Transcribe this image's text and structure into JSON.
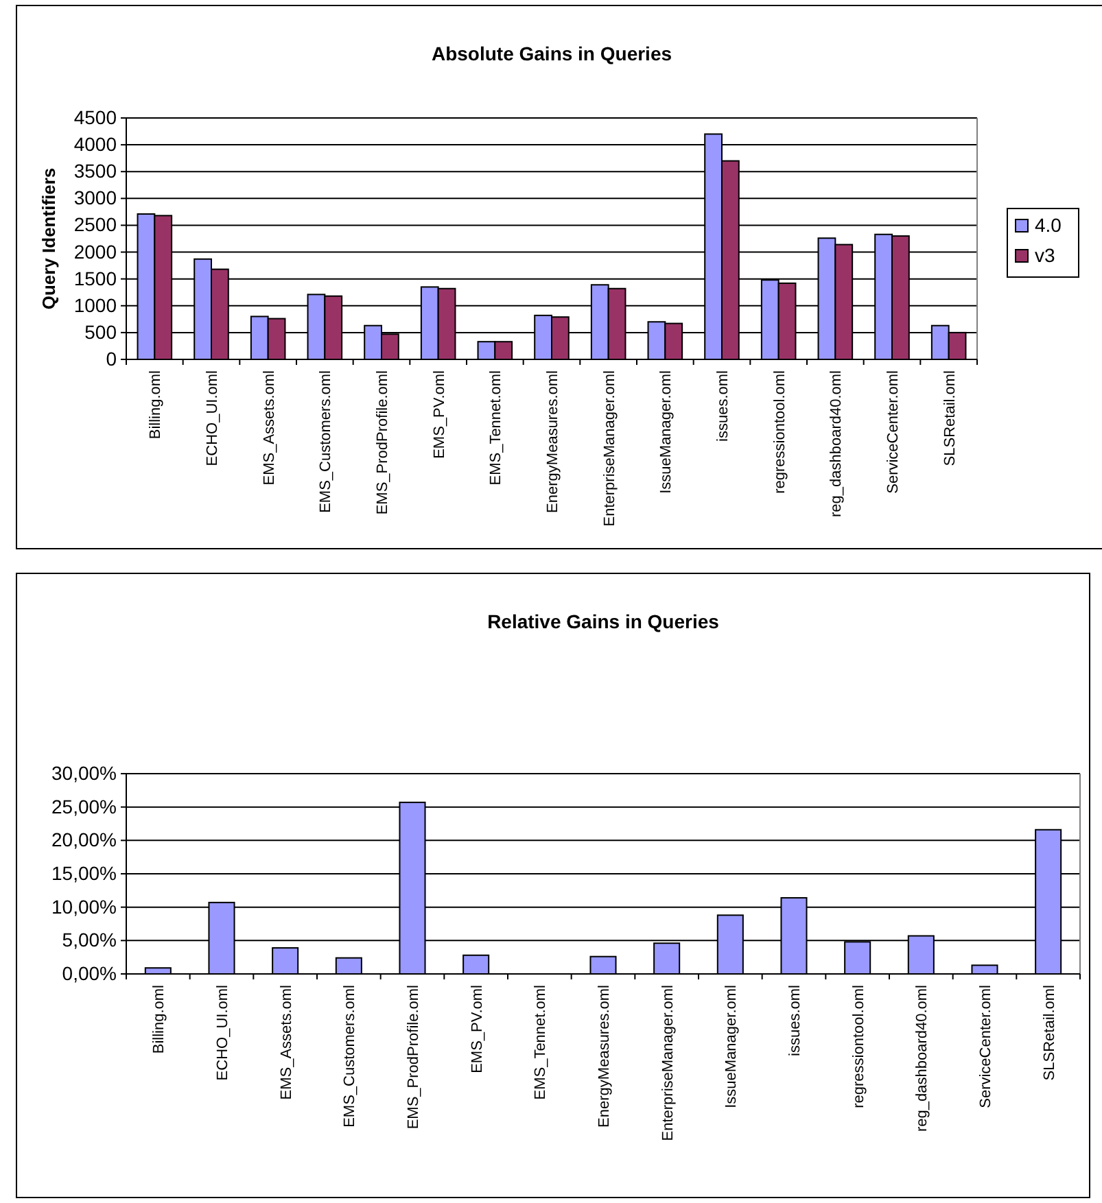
{
  "chart_data": [
    {
      "type": "bar",
      "title": "Absolute Gains in Queries",
      "ylabel": "Query Identifiers",
      "categories": [
        "Billing.oml",
        "ECHO_UI.oml",
        "EMS_Assets.oml",
        "EMS_Customers.oml",
        "EMS_ProdProfile.oml",
        "EMS_PV.oml",
        "EMS_Tennet.oml",
        "EnergyMeasures.oml",
        "EnterpriseManager.oml",
        "IssueManager.oml",
        "issues.oml",
        "regressiontool.oml",
        "reg_dashboard40.oml",
        "ServiceCenter.oml",
        "SLSRetail.oml"
      ],
      "series": [
        {
          "name": "4.0",
          "color": "#9999ff",
          "values": [
            2710,
            1870,
            800,
            1210,
            630,
            1350,
            330,
            820,
            1390,
            700,
            4200,
            1480,
            2260,
            2330,
            630
          ]
        },
        {
          "name": "v3",
          "color": "#993366",
          "values": [
            2680,
            1680,
            760,
            1180,
            470,
            1320,
            330,
            790,
            1320,
            670,
            3700,
            1420,
            2140,
            2300,
            500
          ]
        }
      ],
      "ylim": [
        0,
        4500
      ],
      "yticks": [
        0,
        500,
        1000,
        1500,
        2000,
        2500,
        3000,
        3500,
        4000,
        4500
      ],
      "grid": "y",
      "legend": "right"
    },
    {
      "type": "bar",
      "title": "Relative Gains in Queries",
      "categories": [
        "Billing.oml",
        "ECHO_UI.oml",
        "EMS_Assets.oml",
        "EMS_Customers.oml",
        "EMS_ProdProfile.oml",
        "EMS_PV.oml",
        "EMS_Tennet.oml",
        "EnergyMeasures.oml",
        "EnterpriseManager.oml",
        "IssueManager.oml",
        "issues.oml",
        "regressiontool.oml",
        "reg_dashboard40.oml",
        "ServiceCenter.oml",
        "SLSRetail.oml"
      ],
      "series": [
        {
          "color": "#9999ff",
          "values": [
            0.9,
            10.7,
            3.9,
            2.4,
            25.7,
            2.8,
            0,
            2.6,
            4.6,
            8.8,
            11.4,
            4.8,
            5.7,
            1.3,
            21.6
          ]
        }
      ],
      "ylim": [
        0,
        30
      ],
      "yticks": [
        {
          "value": 0,
          "label": "0,00%"
        },
        {
          "value": 5,
          "label": "5,00%"
        },
        {
          "value": 10,
          "label": "10,00%"
        },
        {
          "value": 15,
          "label": "15,00%"
        },
        {
          "value": 20,
          "label": "20,00%"
        },
        {
          "value": 25,
          "label": "25,00%"
        },
        {
          "value": 30,
          "label": "30,00%"
        }
      ],
      "grid": "y"
    }
  ]
}
